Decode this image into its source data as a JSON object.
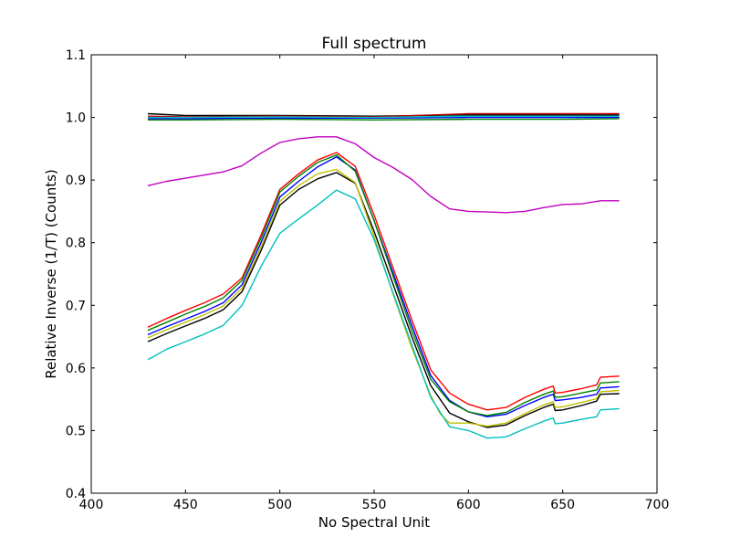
{
  "chart_data": {
    "type": "line",
    "title": "Full spectrum",
    "xlabel": "No Spectral Unit",
    "ylabel": "Relative Inverse (1/T) (Counts)",
    "xlim": [
      400,
      700
    ],
    "ylim": [
      0.4,
      1.1
    ],
    "xticks": [
      400,
      450,
      500,
      550,
      600,
      650,
      700
    ],
    "yticks": [
      0.4,
      0.5,
      0.6,
      0.7,
      0.8,
      0.9,
      1.0,
      1.1
    ],
    "xtick_labels": [
      "400",
      "450",
      "500",
      "550",
      "600",
      "650",
      "700"
    ],
    "ytick_labels": [
      "0.4",
      "0.5",
      "0.6",
      "0.7",
      "0.8",
      "0.9",
      "1.0",
      "1.1"
    ],
    "grid": false,
    "legend": "none",
    "series": [
      {
        "color": "#000000",
        "x": [
          430,
          450,
          500,
          550,
          600,
          650,
          680
        ],
        "y": [
          1.006,
          1.003,
          1.003,
          1.002,
          1.004,
          1.004,
          1.004
        ]
      },
      {
        "color": "#c00000",
        "x": [
          430,
          450,
          500,
          550,
          600,
          650,
          680
        ],
        "y": [
          1.002,
          1.001,
          1.002,
          1.001,
          1.006,
          1.006,
          1.006
        ]
      },
      {
        "color": "#0000ff",
        "x": [
          430,
          450,
          500,
          550,
          600,
          650,
          680
        ],
        "y": [
          0.998,
          0.998,
          0.999,
          0.999,
          1.0,
          1.0,
          1.0
        ]
      },
      {
        "color": "#008000",
        "x": [
          430,
          450,
          500,
          550,
          600,
          650,
          680
        ],
        "y": [
          0.996,
          0.996,
          0.997,
          0.996,
          0.997,
          0.997,
          0.998
        ]
      },
      {
        "color": "#00bfbf",
        "x": [
          430,
          450,
          500,
          550,
          600,
          650,
          680
        ],
        "y": [
          1.0,
          1.0,
          1.001,
          1.0,
          1.002,
          1.002,
          1.002
        ]
      },
      {
        "color": "#bf00bf",
        "x": [
          430,
          440,
          450,
          470,
          480,
          490,
          500,
          510,
          520,
          530,
          540,
          550,
          560,
          570,
          580,
          590,
          600,
          610,
          620,
          630,
          640,
          650,
          660,
          670,
          680
        ],
        "y": [
          0.891,
          0.898,
          0.903,
          0.913,
          0.923,
          0.943,
          0.96,
          0.966,
          0.969,
          0.969,
          0.958,
          0.936,
          0.92,
          0.901,
          0.874,
          0.854,
          0.85,
          0.849,
          0.848,
          0.85,
          0.856,
          0.861,
          0.862,
          0.867,
          0.867
        ]
      },
      {
        "color": "#0000ff",
        "x": [
          430,
          440,
          450,
          460,
          470,
          480,
          490,
          500,
          510,
          520,
          530,
          540,
          550,
          560,
          570,
          580,
          590,
          600,
          610,
          620,
          630,
          640,
          645,
          646,
          650,
          660,
          668,
          670,
          680
        ],
        "y": [
          0.653,
          0.666,
          0.678,
          0.69,
          0.704,
          0.733,
          0.8,
          0.873,
          0.898,
          0.921,
          0.937,
          0.916,
          0.835,
          0.752,
          0.668,
          0.588,
          0.548,
          0.53,
          0.522,
          0.526,
          0.54,
          0.553,
          0.558,
          0.548,
          0.549,
          0.553,
          0.558,
          0.568,
          0.57
        ]
      },
      {
        "color": "#ff0000",
        "x": [
          430,
          440,
          450,
          460,
          470,
          480,
          490,
          500,
          510,
          520,
          530,
          540,
          550,
          560,
          570,
          580,
          590,
          600,
          610,
          620,
          630,
          640,
          645,
          646,
          650,
          660,
          668,
          670,
          680
        ],
        "y": [
          0.665,
          0.679,
          0.692,
          0.704,
          0.718,
          0.744,
          0.812,
          0.885,
          0.91,
          0.932,
          0.944,
          0.922,
          0.844,
          0.76,
          0.677,
          0.597,
          0.56,
          0.542,
          0.533,
          0.537,
          0.553,
          0.566,
          0.571,
          0.56,
          0.561,
          0.567,
          0.573,
          0.585,
          0.587
        ]
      },
      {
        "color": "#008000",
        "x": [
          430,
          440,
          450,
          460,
          470,
          480,
          490,
          500,
          510,
          520,
          530,
          540,
          550,
          560,
          570,
          580,
          590,
          600,
          610,
          620,
          630,
          640,
          645,
          646,
          650,
          660,
          668,
          670,
          680
        ],
        "y": [
          0.66,
          0.673,
          0.686,
          0.698,
          0.712,
          0.74,
          0.807,
          0.881,
          0.906,
          0.928,
          0.94,
          0.914,
          0.835,
          0.747,
          0.66,
          0.582,
          0.546,
          0.53,
          0.524,
          0.529,
          0.545,
          0.558,
          0.563,
          0.553,
          0.554,
          0.56,
          0.565,
          0.576,
          0.578
        ]
      },
      {
        "color": "#000000",
        "x": [
          430,
          440,
          450,
          460,
          470,
          480,
          490,
          500,
          510,
          520,
          530,
          540,
          550,
          560,
          570,
          580,
          590,
          600,
          610,
          620,
          630,
          640,
          645,
          646,
          650,
          660,
          668,
          670,
          680
        ],
        "y": [
          0.642,
          0.655,
          0.667,
          0.679,
          0.693,
          0.722,
          0.787,
          0.86,
          0.885,
          0.902,
          0.912,
          0.895,
          0.818,
          0.734,
          0.65,
          0.572,
          0.528,
          0.514,
          0.505,
          0.509,
          0.524,
          0.537,
          0.542,
          0.532,
          0.533,
          0.54,
          0.547,
          0.558,
          0.559
        ]
      },
      {
        "color": "#bfbf00",
        "x": [
          430,
          440,
          450,
          460,
          470,
          480,
          490,
          500,
          510,
          520,
          530,
          540,
          550,
          560,
          570,
          580,
          585,
          590,
          600,
          610,
          620,
          630,
          640,
          645,
          646,
          650,
          660,
          668,
          670,
          680
        ],
        "y": [
          0.648,
          0.661,
          0.673,
          0.685,
          0.699,
          0.727,
          0.793,
          0.866,
          0.891,
          0.91,
          0.917,
          0.896,
          0.81,
          0.718,
          0.632,
          0.556,
          0.527,
          0.512,
          0.512,
          0.507,
          0.512,
          0.527,
          0.541,
          0.546,
          0.537,
          0.538,
          0.545,
          0.551,
          0.562,
          0.564
        ]
      },
      {
        "color": "#00bfbf",
        "x": [
          430,
          440,
          450,
          460,
          470,
          480,
          490,
          500,
          510,
          520,
          530,
          540,
          550,
          560,
          570,
          580,
          590,
          600,
          610,
          620,
          630,
          640,
          645,
          646,
          650,
          660,
          668,
          670,
          680
        ],
        "y": [
          0.613,
          0.63,
          0.642,
          0.654,
          0.668,
          0.7,
          0.762,
          0.815,
          0.838,
          0.86,
          0.884,
          0.87,
          0.805,
          0.72,
          0.637,
          0.553,
          0.506,
          0.5,
          0.488,
          0.49,
          0.503,
          0.515,
          0.52,
          0.511,
          0.512,
          0.518,
          0.522,
          0.533,
          0.535
        ]
      }
    ]
  }
}
